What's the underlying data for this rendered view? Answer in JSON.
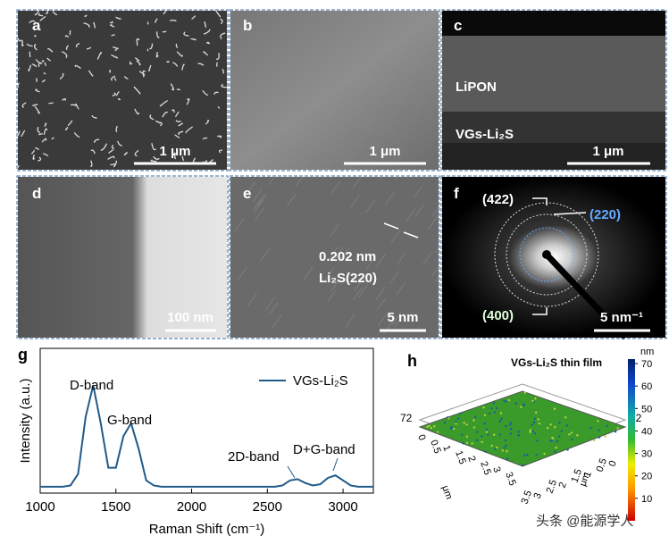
{
  "panels": {
    "a": {
      "label": "a",
      "scale_bar": "1 μm"
    },
    "b": {
      "label": "b",
      "scale_bar": "1 μm"
    },
    "c": {
      "label": "c",
      "scale_bar": "1 μm",
      "layers": [
        "LiPON",
        "VGs-Li₂S"
      ]
    },
    "d": {
      "label": "d",
      "scale_bar": "100 nm"
    },
    "e": {
      "label": "e",
      "scale_bar": "5 nm",
      "d_spacing": "0.202 nm",
      "plane": "Li₂S(220)"
    },
    "f": {
      "label": "f",
      "scale_bar": "5 nm⁻¹",
      "rings": [
        "(422)",
        "(220)",
        "(400)"
      ]
    },
    "g": {
      "label": "g"
    },
    "h": {
      "label": "h"
    }
  },
  "chart_data": {
    "type": "line",
    "x": [
      1000,
      1050,
      1100,
      1150,
      1200,
      1250,
      1300,
      1350,
      1400,
      1450,
      1500,
      1550,
      1600,
      1650,
      1700,
      1750,
      1800,
      1850,
      1900,
      1950,
      2000,
      2050,
      2100,
      2150,
      2200,
      2250,
      2300,
      2350,
      2400,
      2450,
      2500,
      2550,
      2600,
      2650,
      2700,
      2750,
      2800,
      2850,
      2900,
      2950,
      3000,
      3050,
      3100,
      3150,
      3200
    ],
    "series": [
      {
        "name": "VGs-Li₂S",
        "color": "#1f5a8a",
        "values": [
          0.05,
          0.05,
          0.05,
          0.05,
          0.06,
          0.15,
          0.6,
          0.85,
          0.55,
          0.2,
          0.2,
          0.45,
          0.55,
          0.35,
          0.1,
          0.06,
          0.05,
          0.05,
          0.05,
          0.05,
          0.05,
          0.05,
          0.05,
          0.05,
          0.05,
          0.05,
          0.05,
          0.05,
          0.05,
          0.05,
          0.05,
          0.05,
          0.06,
          0.1,
          0.11,
          0.08,
          0.06,
          0.07,
          0.12,
          0.14,
          0.1,
          0.06,
          0.05,
          0.05,
          0.05
        ]
      }
    ],
    "xlim": [
      1000,
      3200
    ],
    "xticks": [
      1000,
      1500,
      2000,
      2500,
      3000
    ],
    "ylim": [
      0,
      1
    ],
    "x_label": "Raman Shift (cm⁻¹)",
    "y_label": "Intensity (a.u.)",
    "annotations": [
      "D-band",
      "G-band",
      "2D-band",
      "D+G-band"
    ]
  },
  "afm": {
    "title": "VGs-Li₂S thin film",
    "unit": "nm",
    "colorbar_lim": [
      0,
      72
    ],
    "colorbar_ticks": [
      10,
      20,
      30,
      40,
      50,
      60,
      70
    ],
    "axis_max": "72",
    "axis_unit": "μm",
    "x_ticks": [
      0,
      0.5,
      1,
      1.5,
      2,
      2.5,
      3,
      3.5
    ],
    "y_ticks": [
      3.5,
      3,
      2.5,
      2,
      1.5,
      1,
      0.5,
      0
    ]
  },
  "watermark": "头条 @能源学人"
}
